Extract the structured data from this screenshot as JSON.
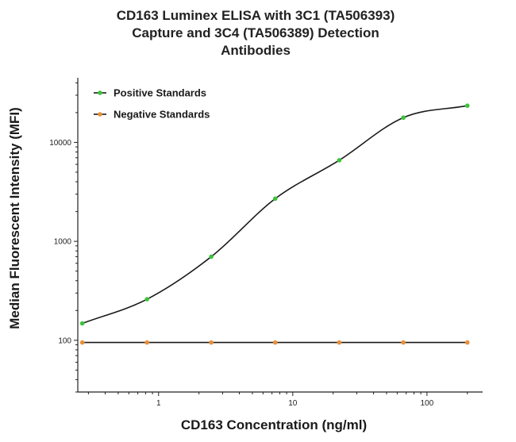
{
  "chart_data": {
    "type": "scatter",
    "title_lines": [
      "CD163 Luminex ELISA with 3C1 (TA506393)",
      "Capture and 3C4 (TA506389) Detection",
      "Antibodies"
    ],
    "xlabel": "CD163 Concentration (ng/ml)",
    "ylabel": "Median Fluorescent Intensity (MFI)",
    "x_scale": "log",
    "y_scale": "log",
    "xlim": [
      0.25,
      260
    ],
    "ylim": [
      30,
      45000
    ],
    "x_ticks": [
      {
        "value": 1,
        "label": "1"
      },
      {
        "value": 10,
        "label": "10"
      },
      {
        "value": 100,
        "label": "100"
      }
    ],
    "y_ticks": [
      {
        "value": 100,
        "label": "100"
      },
      {
        "value": 1000,
        "label": "1000"
      },
      {
        "value": 10000,
        "label": "10000"
      }
    ],
    "grid": false,
    "legend_position": "top-left",
    "series": [
      {
        "name": "Positive Standards",
        "color": "#3cc33c",
        "line_color": "#1a1a1a",
        "fit": "four-parameter-logistic",
        "x": [
          0.27,
          0.82,
          2.47,
          7.4,
          22.2,
          66.7,
          200
        ],
        "y": [
          148,
          260,
          700,
          2700,
          6600,
          17800,
          23500
        ]
      },
      {
        "name": "Negative Standards",
        "color": "#e8903a",
        "line_color": "#1a1a1a",
        "fit": "flat",
        "x": [
          0.27,
          0.82,
          2.47,
          7.4,
          22.2,
          66.7,
          200
        ],
        "y": [
          95,
          95,
          95,
          95,
          95,
          95,
          95
        ]
      }
    ]
  }
}
